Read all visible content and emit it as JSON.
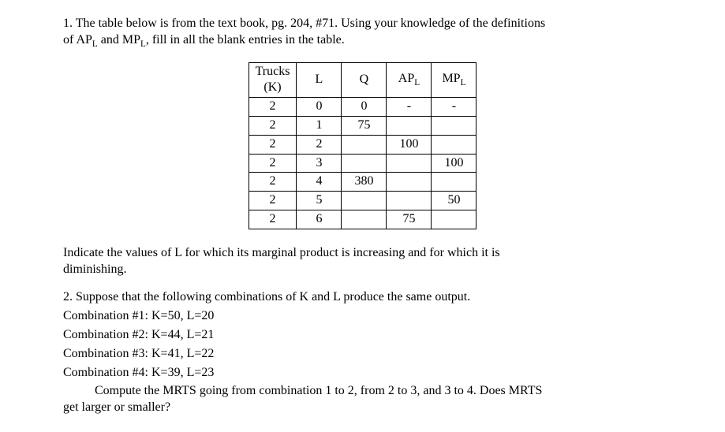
{
  "question1": {
    "intro_line1": "1. The table below is from the text book, pg. 204, #71.  Using your knowledge of the definitions",
    "intro_line2_part1": "of AP",
    "intro_line2_sub1": "L",
    "intro_line2_part2": " and MP",
    "intro_line2_sub2": "L",
    "intro_line2_part3": ", fill in all the blank entries in the table."
  },
  "table": {
    "headers": {
      "col1_line1": "Trucks",
      "col1_line2": "(K)",
      "col2": "L",
      "col3": "Q",
      "col4_main": "AP",
      "col4_sub": "L",
      "col5_main": "MP",
      "col5_sub": "L"
    },
    "rows": [
      {
        "k": "2",
        "l": "0",
        "q": "0",
        "apl": "-",
        "mpl": "-"
      },
      {
        "k": "2",
        "l": "1",
        "q": "75",
        "apl": "",
        "mpl": ""
      },
      {
        "k": "2",
        "l": "2",
        "q": "",
        "apl": "100",
        "mpl": ""
      },
      {
        "k": "2",
        "l": "3",
        "q": "",
        "apl": "",
        "mpl": "100"
      },
      {
        "k": "2",
        "l": "4",
        "q": "380",
        "apl": "",
        "mpl": ""
      },
      {
        "k": "2",
        "l": "5",
        "q": "",
        "apl": "",
        "mpl": "50"
      },
      {
        "k": "2",
        "l": "6",
        "q": "",
        "apl": "75",
        "mpl": ""
      }
    ]
  },
  "question1_followup": {
    "line1": "Indicate the values of L for which its marginal product is increasing and for which it is",
    "line2": "diminishing."
  },
  "question2": {
    "intro": "2. Suppose that the following combinations of K and L produce the same output.",
    "combo1": "Combination #1:  K=50, L=20",
    "combo2": "Combination #2:  K=44, L=21",
    "combo3": "Combination #3:  K=41, L=22",
    "combo4": "Combination #4:  K=39, L=23",
    "final_line1": "Compute the MRTS going from combination 1 to 2, from 2 to 3, and 3 to 4.  Does MRTS",
    "final_line2": "get larger or smaller?"
  }
}
